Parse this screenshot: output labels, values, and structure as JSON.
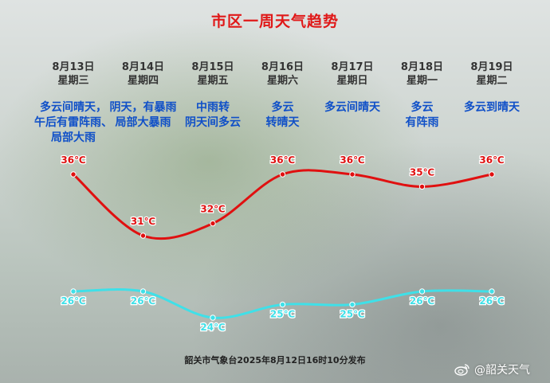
{
  "title": "市区一周天气趋势",
  "days": [
    {
      "date": "8月13日",
      "weekday": "星期三",
      "weather": [
        "多云间晴天，",
        "午后有雷阵雨、",
        "局部大雨"
      ]
    },
    {
      "date": "8月14日",
      "weekday": "星期四",
      "weather": [
        "阴天，有暴雨",
        "局部大暴雨"
      ]
    },
    {
      "date": "8月15日",
      "weekday": "星期五",
      "weather": [
        "中雨转",
        "阴天间多云"
      ]
    },
    {
      "date": "8月16日",
      "weekday": "星期六",
      "weather": [
        "多云",
        "转晴天"
      ]
    },
    {
      "date": "8月17日",
      "weekday": "星期日",
      "weather": [
        "多云间晴天"
      ]
    },
    {
      "date": "8月18日",
      "weekday": "星期一",
      "weather": [
        "多云",
        "有阵雨"
      ]
    },
    {
      "date": "8月19日",
      "weekday": "星期二",
      "weather": [
        "多云到晴天"
      ]
    }
  ],
  "chart_data": {
    "type": "line",
    "categories": [
      "8月13日",
      "8月14日",
      "8月15日",
      "8月16日",
      "8月17日",
      "8月18日",
      "8月19日"
    ],
    "series": [
      {
        "values": [
          36,
          31,
          32,
          36,
          36,
          35,
          36
        ],
        "labels": [
          "36℃",
          "31℃",
          "32℃",
          "36℃",
          "36℃",
          "35℃",
          "36℃"
        ],
        "color": "#e01010"
      },
      {
        "values": [
          26,
          26,
          24,
          25,
          25,
          26,
          26
        ],
        "labels": [
          "26℃",
          "26℃",
          "24℃",
          "25℃",
          "25℃",
          "26℃",
          "26℃"
        ],
        "color": "#3fe0e8"
      }
    ]
  },
  "footer": "韶关市气象台2025年8月12日16时10分发布",
  "watermark": "@韶关天气"
}
